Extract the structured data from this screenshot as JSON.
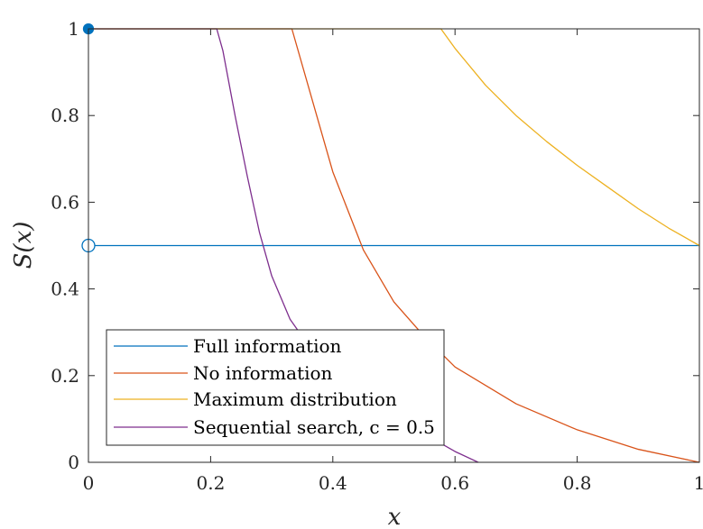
{
  "chart_data": {
    "type": "line",
    "xlabel": "x",
    "ylabel": "S(x)",
    "xlim": [
      0,
      1
    ],
    "ylim": [
      0,
      1
    ],
    "x_ticks": [
      "0",
      "0.2",
      "0.4",
      "0.6",
      "0.8",
      "1"
    ],
    "y_ticks": [
      "0",
      "0.2",
      "0.4",
      "0.6",
      "0.8",
      "1"
    ],
    "grid": false,
    "legend_position": "bottom-left",
    "series": [
      {
        "name": "Full information",
        "color": "#0072BD",
        "x": [
          0,
          1
        ],
        "y": [
          0.5,
          0.5
        ],
        "markers": [
          {
            "x": 0,
            "y": 1,
            "style": "filled-circle"
          },
          {
            "x": 0,
            "y": 0.5,
            "style": "open-circle"
          }
        ]
      },
      {
        "name": "No information",
        "color": "#D95319",
        "x": [
          0,
          0.333,
          0.4,
          0.45,
          0.5,
          0.55,
          0.6,
          0.7,
          0.8,
          0.9,
          1.0
        ],
        "y": [
          1,
          1,
          0.67,
          0.49,
          0.37,
          0.29,
          0.22,
          0.135,
          0.075,
          0.03,
          0
        ]
      },
      {
        "name": "Maximum distribution",
        "color": "#EDB120",
        "x": [
          0,
          0.577,
          0.6,
          0.65,
          0.7,
          0.75,
          0.8,
          0.85,
          0.9,
          0.95,
          1.0
        ],
        "y": [
          1,
          1,
          0.955,
          0.87,
          0.8,
          0.74,
          0.685,
          0.635,
          0.585,
          0.54,
          0.5
        ]
      },
      {
        "name": "Sequential search, c = 0.5",
        "color": "#7E2F8E",
        "x": [
          0,
          0.21,
          0.22,
          0.24,
          0.26,
          0.28,
          0.3,
          0.33,
          0.36,
          0.4,
          0.45,
          0.5,
          0.55,
          0.6,
          0.638
        ],
        "y": [
          1,
          1,
          0.95,
          0.8,
          0.66,
          0.53,
          0.43,
          0.33,
          0.27,
          0.21,
          0.155,
          0.105,
          0.065,
          0.025,
          0
        ]
      }
    ]
  }
}
